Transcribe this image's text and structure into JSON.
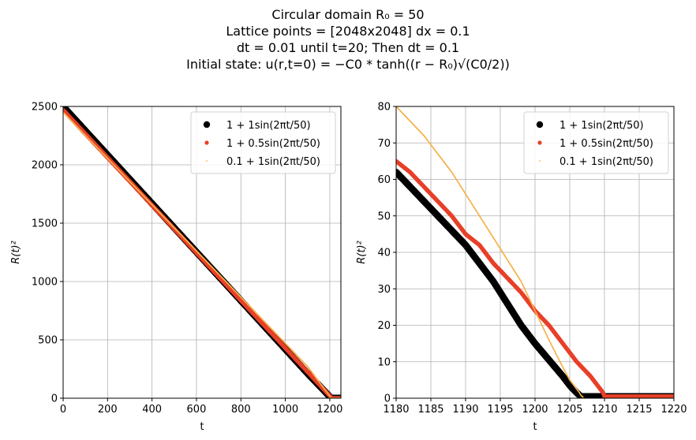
{
  "figure": {
    "title_lines": [
      "Circular domain R₀ = 50",
      "Lattice points = [2048x2048] dx = 0.1",
      "dt = 0.01 until t=20; Then dt = 0.1",
      "Initial state: u(r,t=0) = −C0 * tanh((r − R₀)√(C0/2))"
    ]
  },
  "colors": {
    "series1": "#000000",
    "series2": "#e8402a",
    "series3": "#f7b04a",
    "grid": "#b0b0b0"
  },
  "chart_data": [
    {
      "type": "scatter",
      "xlabel": "t",
      "ylabel": "R(t)²",
      "xlim": [
        0,
        1250
      ],
      "ylim": [
        0,
        2500
      ],
      "xticks": [
        0,
        200,
        400,
        600,
        800,
        1000,
        1200
      ],
      "yticks": [
        0,
        500,
        1000,
        1500,
        2000,
        2500
      ],
      "grid": true,
      "legend_position": "top-right",
      "series": [
        {
          "name": "1 + 1sin(2πt/50)",
          "marker": "dot-large",
          "x": [
            0,
            100,
            200,
            300,
            400,
            500,
            600,
            700,
            800,
            900,
            1000,
            1100,
            1206.6,
            1250
          ],
          "y": [
            2500,
            2292,
            2084,
            1876,
            1668,
            1460,
            1252,
            1044,
            836,
            628,
            420,
            212,
            0,
            0
          ]
        },
        {
          "name": "1 + 0.5sin(2πt/50)",
          "marker": "dot-medium",
          "x": [
            0,
            100,
            200,
            300,
            400,
            500,
            600,
            700,
            800,
            900,
            1000,
            1100,
            1210,
            1250
          ],
          "y": [
            2470,
            2266,
            2062,
            1858,
            1654,
            1450,
            1246,
            1042,
            838,
            634,
            430,
            226,
            0,
            0
          ]
        },
        {
          "name": "0.1 + 1sin(2πt/50)",
          "marker": "dot-small",
          "x": [
            0,
            100,
            200,
            300,
            400,
            500,
            600,
            700,
            800,
            900,
            1000,
            1100,
            1206.9,
            1250
          ],
          "y": [
            2450,
            2252,
            2054,
            1856,
            1658,
            1460,
            1262,
            1064,
            866,
            668,
            470,
            272,
            0,
            0
          ]
        }
      ]
    },
    {
      "type": "scatter",
      "xlabel": "t",
      "ylabel": "R(t)²",
      "xlim": [
        1180,
        1220
      ],
      "ylim": [
        0,
        80
      ],
      "xticks": [
        1180,
        1185,
        1190,
        1195,
        1200,
        1205,
        1210,
        1215,
        1220
      ],
      "yticks": [
        0,
        10,
        20,
        30,
        40,
        50,
        60,
        70,
        80
      ],
      "grid": true,
      "legend_position": "top-right",
      "series": [
        {
          "name": "1 + 1sin(2πt/50)",
          "marker": "dot-large",
          "x": [
            1180,
            1182,
            1184,
            1186,
            1188,
            1190,
            1192,
            1194,
            1196,
            1198,
            1200,
            1202,
            1204,
            1205,
            1206,
            1206.6,
            1208,
            1210,
            1215,
            1220
          ],
          "y": [
            62,
            58,
            54,
            50,
            46,
            42,
            37,
            32,
            26,
            20,
            15,
            10.5,
            6,
            3.5,
            1.5,
            0.5,
            0.5,
            0.5,
            0.5,
            0.5
          ]
        },
        {
          "name": "1 + 0.5sin(2πt/50)",
          "marker": "dot-medium",
          "x": [
            1180,
            1182,
            1184,
            1186,
            1188,
            1190,
            1192,
            1194,
            1196,
            1198,
            1200,
            1202,
            1204,
            1206,
            1208,
            1209,
            1209.8,
            1210,
            1215,
            1220
          ],
          "y": [
            65,
            62,
            58,
            54,
            50,
            45,
            42,
            37,
            33,
            29,
            24,
            20,
            15,
            10,
            6,
            3.5,
            1.5,
            0.5,
            0.5,
            0.5
          ]
        },
        {
          "name": "0.1 + 1sin(2πt/50)",
          "marker": "dot-small",
          "x": [
            1180,
            1182,
            1184,
            1186,
            1188,
            1190,
            1192,
            1194,
            1196,
            1198,
            1200,
            1202,
            1204,
            1205,
            1206,
            1206.4,
            1206.6,
            1206.9
          ],
          "y": [
            80,
            76,
            72,
            67,
            62,
            56,
            50,
            44,
            38,
            32,
            24,
            16,
            8.5,
            5,
            2.5,
            1.5,
            0.8,
            0.3
          ]
        }
      ]
    }
  ]
}
